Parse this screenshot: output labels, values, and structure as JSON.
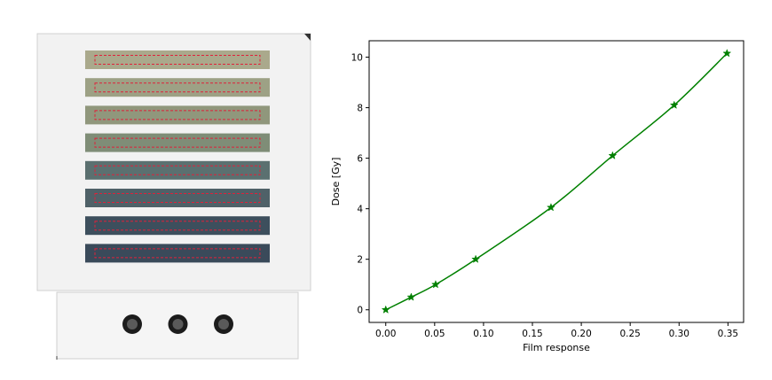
{
  "scan": {
    "strip_colors": [
      "#aaa98c",
      "#9da185",
      "#90977c",
      "#7f8d77",
      "#5b7070",
      "#4f6168",
      "#3d4f5d",
      "#3a4a5a"
    ],
    "roi_color": "#e0203a",
    "board_color": "#f2f2f2",
    "holder_color": "#f5f5f5",
    "hole_count": 3
  },
  "chart_data": {
    "type": "line",
    "xlabel": "Film response",
    "ylabel": "Dose [Gy]",
    "xlim": [
      -0.017,
      0.366
    ],
    "ylim": [
      -0.5,
      10.65
    ],
    "xticks": [
      0.0,
      0.05,
      0.1,
      0.15,
      0.2,
      0.25,
      0.3,
      0.35
    ],
    "xtick_labels": [
      "0.00",
      "0.05",
      "0.10",
      "0.15",
      "0.20",
      "0.25",
      "0.30",
      "0.35"
    ],
    "yticks": [
      0,
      2,
      4,
      6,
      8,
      10
    ],
    "ytick_labels": [
      "0",
      "2",
      "4",
      "6",
      "8",
      "10"
    ],
    "grid": false,
    "series": [
      {
        "marker": "star",
        "color": "#008000",
        "x": [
          0.0,
          0.026,
          0.051,
          0.092,
          0.169,
          0.232,
          0.295,
          0.349
        ],
        "y": [
          0.0,
          0.5,
          1.0,
          2.0,
          4.05,
          6.1,
          8.1,
          10.15
        ]
      }
    ]
  }
}
